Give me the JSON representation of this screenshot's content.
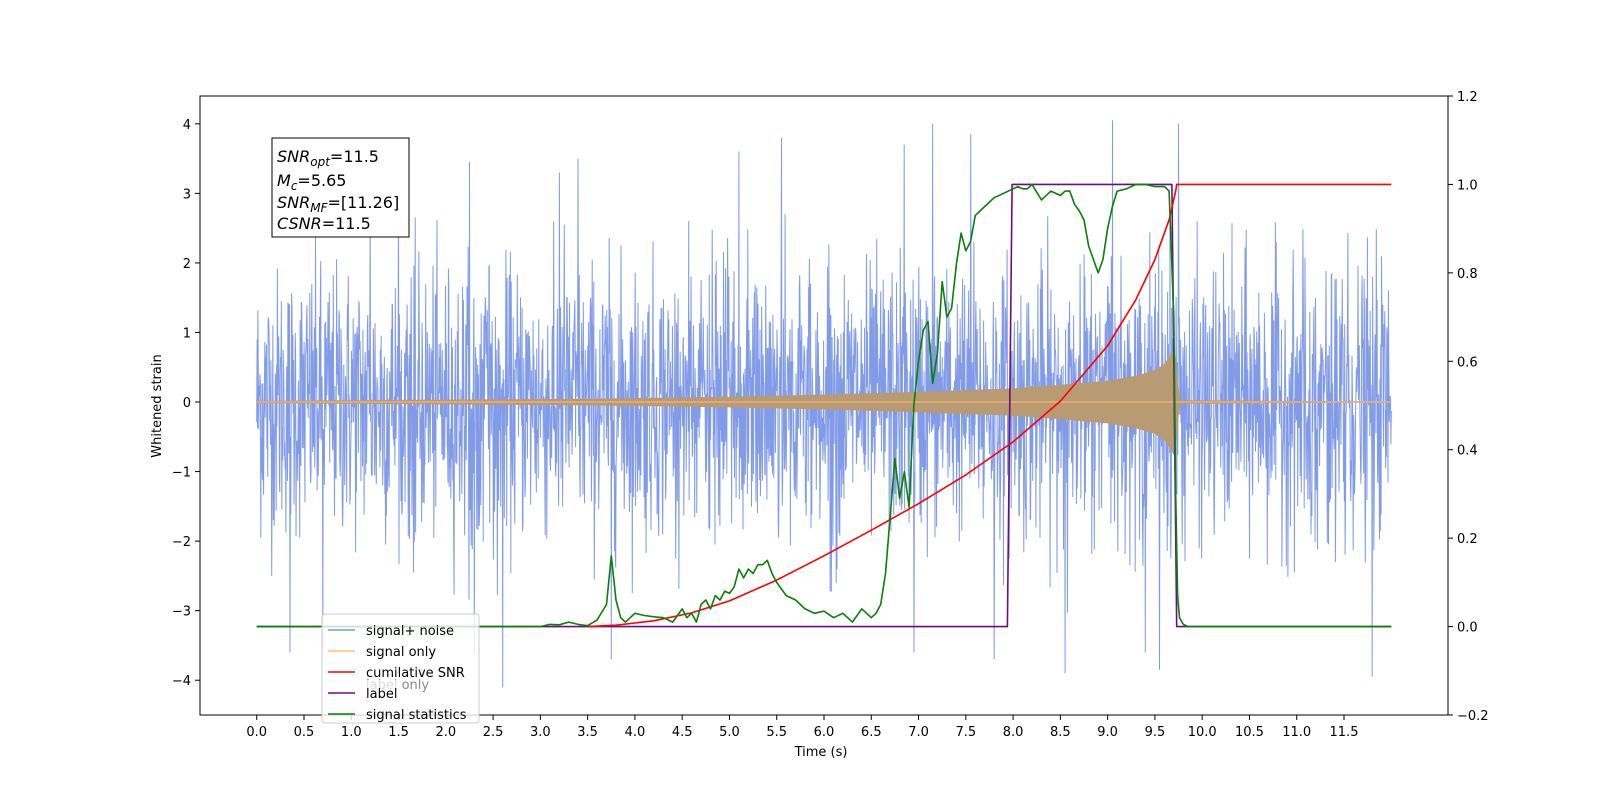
{
  "chart_data": {
    "type": "line",
    "xlabel": "Time (s)",
    "ylabel": "Whitened strain",
    "xlim": [
      -0.6,
      12.6
    ],
    "ylim": [
      -4.5,
      4.4
    ],
    "y2lim": [
      -0.2,
      1.2
    ],
    "x_ticks": [
      "0.0",
      "0.5",
      "1.0",
      "1.5",
      "2.0",
      "2.5",
      "3.0",
      "3.5",
      "4.0",
      "4.5",
      "5.0",
      "5.5",
      "6.0",
      "6.5",
      "7.0",
      "7.5",
      "8.0",
      "8.5",
      "9.0",
      "9.5",
      "10.0",
      "10.5",
      "11.0",
      "11.5"
    ],
    "y_ticks": [
      -4,
      -3,
      -2,
      -1,
      0,
      1,
      2,
      3,
      4
    ],
    "y2_ticks": [
      "−0.2",
      "0.0",
      "0.2",
      "0.4",
      "0.6",
      "0.8",
      "1.0",
      "1.2"
    ],
    "legend": {
      "placement": "lower-left",
      "entries": [
        {
          "label": "signal+ noise",
          "color": "#7a96e8"
        },
        {
          "label": "signal only",
          "color": "#ffc36b"
        },
        {
          "label": "cumilative SNR",
          "color": "#ff0000"
        },
        {
          "label": "label",
          "color": "#6a0f7f"
        },
        {
          "label": "signal statistics",
          "color": "#0a7f0a"
        }
      ],
      "hidden_text": [
        "label only"
      ]
    },
    "annotation": {
      "snr_opt": {
        "sym": "SNR",
        "sub": "opt",
        "value": "=11.5"
      },
      "mc": {
        "sym": "M",
        "sub": "c",
        "value": "=5.65"
      },
      "snr_mf": {
        "sym": "SNR",
        "sub": "MF",
        "value": "=[11.26]"
      },
      "csnr": {
        "sym": "CSNR",
        "sub": "",
        "value": "=11.5"
      }
    },
    "series": [
      {
        "name": "signal+ noise",
        "axis": "left",
        "color": "#7a96e8",
        "x_range": [
          0.0,
          12.0
        ],
        "typical_range": [
          -2.7,
          2.5
        ],
        "spikes": [
          [
            0.35,
            -3.6
          ],
          [
            0.7,
            -3.55
          ],
          [
            1.2,
            2.9
          ],
          [
            1.5,
            3.2
          ],
          [
            2.25,
            3.45
          ],
          [
            2.3,
            -3.6
          ],
          [
            2.6,
            -4.1
          ],
          [
            3.2,
            3.3
          ],
          [
            3.4,
            3.5
          ],
          [
            3.75,
            -3.7
          ],
          [
            5.1,
            3.6
          ],
          [
            5.55,
            3.8
          ],
          [
            6.85,
            3.7
          ],
          [
            6.95,
            -3.6
          ],
          [
            7.15,
            4.0
          ],
          [
            7.55,
            3.85
          ],
          [
            7.8,
            -3.7
          ],
          [
            8.55,
            -3.9
          ],
          [
            9.05,
            4.05
          ],
          [
            9.4,
            -3.6
          ],
          [
            9.55,
            -3.85
          ],
          [
            9.75,
            4.0
          ],
          [
            11.8,
            -3.95
          ]
        ]
      },
      {
        "name": "signal only",
        "axis": "left",
        "color": "#b99b73",
        "envelope_x": [
          0.0,
          3.5,
          5.0,
          6.0,
          7.0,
          8.0,
          8.5,
          9.0,
          9.3,
          9.5,
          9.6,
          9.66,
          9.7,
          9.72,
          9.76,
          12.0
        ],
        "envelope_y": [
          0.01,
          0.04,
          0.07,
          0.1,
          0.14,
          0.19,
          0.24,
          0.3,
          0.37,
          0.45,
          0.54,
          0.65,
          0.75,
          0.55,
          0.02,
          0.0
        ]
      },
      {
        "name": "cumilative SNR",
        "axis": "right",
        "color": "#ff0000",
        "x": [
          3.5,
          3.8,
          4.2,
          4.6,
          5.0,
          5.5,
          6.0,
          6.5,
          7.0,
          7.5,
          8.0,
          8.5,
          9.0,
          9.3,
          9.5,
          9.65,
          9.72,
          9.73,
          12.0
        ],
        "values": [
          0.0,
          0.003,
          0.013,
          0.031,
          0.058,
          0.105,
          0.16,
          0.218,
          0.278,
          0.343,
          0.418,
          0.51,
          0.635,
          0.74,
          0.83,
          0.92,
          0.985,
          1.0,
          1.0
        ]
      },
      {
        "name": "label",
        "axis": "right",
        "color": "#6a0f7f",
        "x": [
          0.0,
          7.94,
          7.99,
          9.68,
          9.73,
          12.0
        ],
        "values": [
          0.0,
          0.0,
          1.0,
          1.0,
          0.0,
          0.0
        ]
      },
      {
        "name": "signal statistics",
        "axis": "right",
        "color": "#0a7f0a",
        "x": [
          0.0,
          3.0,
          3.1,
          3.2,
          3.3,
          3.4,
          3.5,
          3.6,
          3.7,
          3.75,
          3.8,
          3.85,
          3.9,
          4.0,
          4.1,
          4.2,
          4.3,
          4.4,
          4.5,
          4.55,
          4.6,
          4.65,
          4.7,
          4.75,
          4.8,
          4.85,
          4.9,
          4.95,
          5.0,
          5.05,
          5.1,
          5.15,
          5.2,
          5.25,
          5.3,
          5.35,
          5.4,
          5.45,
          5.5,
          5.6,
          5.7,
          5.8,
          5.9,
          6.0,
          6.1,
          6.2,
          6.3,
          6.4,
          6.5,
          6.55,
          6.6,
          6.65,
          6.7,
          6.75,
          6.8,
          6.85,
          6.9,
          6.95,
          7.0,
          7.05,
          7.1,
          7.15,
          7.2,
          7.25,
          7.3,
          7.35,
          7.4,
          7.45,
          7.5,
          7.55,
          7.6,
          7.7,
          7.8,
          7.9,
          8.0,
          8.05,
          8.1,
          8.15,
          8.2,
          8.3,
          8.4,
          8.5,
          8.55,
          8.6,
          8.65,
          8.7,
          8.75,
          8.8,
          8.85,
          8.9,
          8.95,
          9.0,
          9.05,
          9.1,
          9.2,
          9.3,
          9.4,
          9.5,
          9.6,
          9.65,
          9.7,
          9.72,
          9.74,
          9.76,
          9.8,
          9.85,
          9.9,
          12.0
        ],
        "values": [
          0.0,
          0.0,
          0.005,
          0.004,
          0.01,
          0.005,
          0.002,
          0.015,
          0.05,
          0.16,
          0.06,
          0.02,
          0.01,
          0.03,
          0.025,
          0.022,
          0.02,
          0.01,
          0.04,
          0.02,
          0.03,
          0.01,
          0.05,
          0.06,
          0.04,
          0.07,
          0.06,
          0.08,
          0.075,
          0.09,
          0.13,
          0.11,
          0.13,
          0.12,
          0.14,
          0.14,
          0.15,
          0.12,
          0.1,
          0.07,
          0.06,
          0.04,
          0.03,
          0.035,
          0.02,
          0.03,
          0.01,
          0.04,
          0.02,
          0.03,
          0.05,
          0.12,
          0.25,
          0.38,
          0.29,
          0.35,
          0.27,
          0.5,
          0.6,
          0.67,
          0.69,
          0.55,
          0.62,
          0.78,
          0.7,
          0.72,
          0.82,
          0.89,
          0.85,
          0.87,
          0.93,
          0.95,
          0.97,
          0.98,
          0.99,
          0.995,
          0.99,
          0.99,
          1.0,
          0.965,
          0.985,
          0.975,
          0.985,
          0.985,
          0.955,
          0.94,
          0.92,
          0.86,
          0.83,
          0.8,
          0.83,
          0.9,
          0.95,
          0.985,
          0.99,
          1.0,
          1.0,
          0.995,
          0.995,
          0.985,
          0.7,
          0.3,
          0.07,
          0.02,
          0.005,
          0.0,
          0.0,
          0.0
        ]
      }
    ]
  }
}
